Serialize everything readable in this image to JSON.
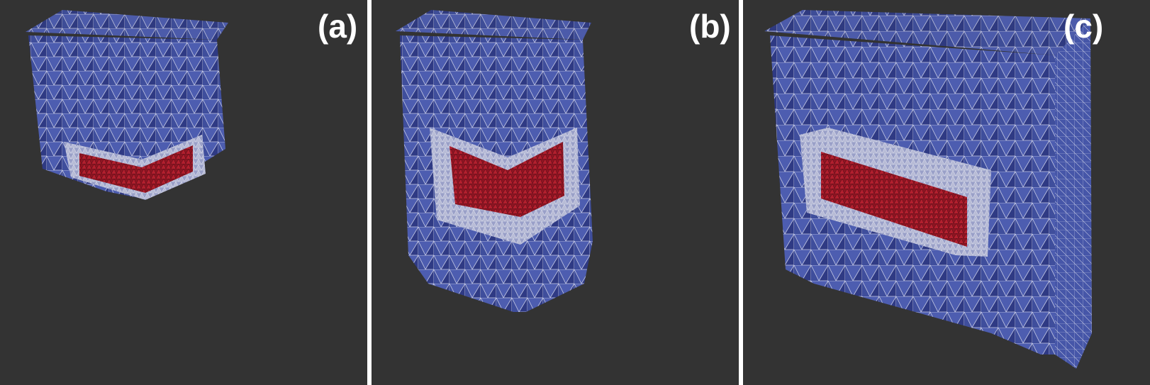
{
  "panels": [
    {
      "id": "a",
      "label": "(a)"
    },
    {
      "id": "b",
      "label": "(b)"
    },
    {
      "id": "c",
      "label": "(c)"
    }
  ],
  "colors": {
    "background": "#333333",
    "mesh_blue": "#4a5aa8",
    "mesh_blue_dark": "#2b347a",
    "mesh_edge": "#c9cde8",
    "inclusion_red": "#b01e2c",
    "transition_white": "#d8d8e4"
  }
}
